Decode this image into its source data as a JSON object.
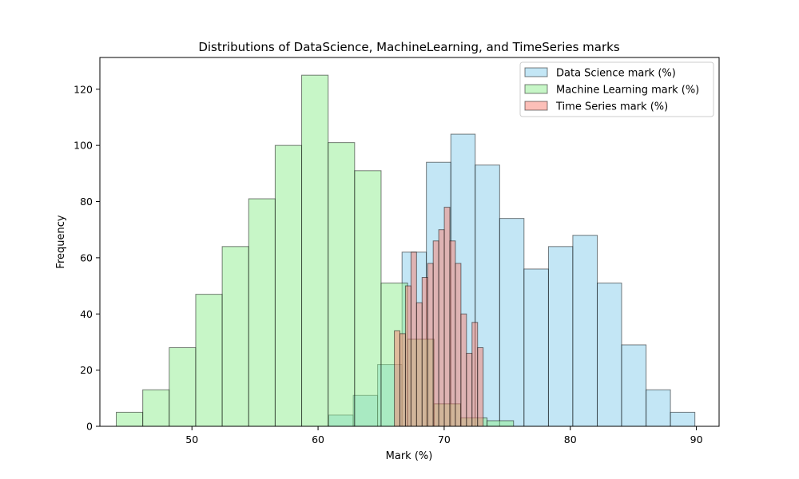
{
  "chart_data": {
    "type": "bar",
    "subtype": "overlaid-histogram",
    "title": "Distributions of DataScience, MachineLearning, and TimeSeries marks",
    "xlabel": "Mark (%)",
    "ylabel": "Frequency",
    "xlim": [
      42.7,
      91.8
    ],
    "ylim": [
      0,
      131.3
    ],
    "xticks": [
      50,
      60,
      70,
      80,
      90
    ],
    "yticks": [
      0,
      20,
      40,
      60,
      80,
      100,
      120
    ],
    "grid": false,
    "legend_position": "top-right",
    "series": [
      {
        "name": "Data Science mark (%)",
        "color": "#87ceeb",
        "bin_edges": [
          60.85,
          62.79,
          64.72,
          66.66,
          68.59,
          70.53,
          72.46,
          74.4,
          76.33,
          78.27,
          80.2,
          82.14,
          84.07,
          86.01,
          87.94,
          89.88
        ],
        "counts": [
          4,
          11,
          22,
          62,
          94,
          104,
          93,
          74,
          56,
          64,
          68,
          51,
          29,
          13,
          5
        ]
      },
      {
        "name": "Machine Learning mark (%)",
        "color": "#90ee90",
        "bin_edges": [
          44.0,
          46.1,
          48.2,
          50.3,
          52.4,
          54.5,
          56.6,
          58.7,
          60.8,
          62.9,
          65.0,
          67.1,
          69.2,
          71.3,
          73.4,
          75.5
        ],
        "counts": [
          5,
          13,
          28,
          47,
          64,
          81,
          100,
          125,
          101,
          91,
          51,
          31,
          8,
          3,
          2
        ]
      },
      {
        "name": "Time Series mark (%)",
        "color": "#fa8072",
        "bin_edges": [
          66.05,
          66.49,
          66.93,
          67.37,
          67.81,
          68.25,
          68.69,
          69.13,
          69.57,
          70.01,
          70.45,
          70.89,
          71.33,
          71.77,
          72.21,
          72.65,
          73.09
        ],
        "counts": [
          34,
          33,
          50,
          62,
          44,
          53,
          58,
          66,
          70,
          78,
          66,
          58,
          40,
          26,
          37,
          28
        ]
      }
    ]
  }
}
